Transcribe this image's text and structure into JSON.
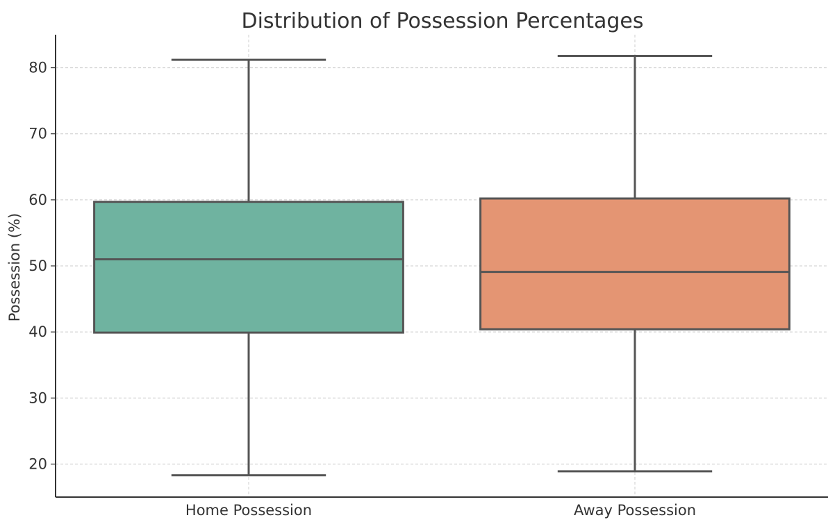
{
  "chart_data": {
    "type": "boxplot",
    "title": "Distribution of Possession Percentages",
    "xlabel": "",
    "ylabel": "Possession (%)",
    "ylim": [
      15,
      85
    ],
    "yticks": [
      20,
      30,
      40,
      50,
      60,
      70,
      80
    ],
    "grid": true,
    "legend": "none",
    "categories": [
      "Home Possession",
      "Away Possession"
    ],
    "series": [
      {
        "category": "Home Possession",
        "color": "#6fb3a0",
        "whisker_low": 18.3,
        "q1": 39.9,
        "median": 51.0,
        "q3": 59.7,
        "whisker_high": 81.2
      },
      {
        "category": "Away Possession",
        "color": "#e49573",
        "whisker_low": 18.9,
        "q1": 40.4,
        "median": 49.1,
        "q3": 60.2,
        "whisker_high": 81.8
      }
    ]
  }
}
